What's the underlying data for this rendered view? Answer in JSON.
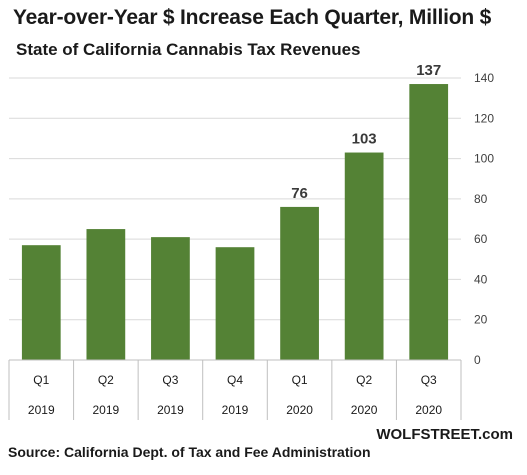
{
  "chart_data": {
    "type": "bar",
    "title": "Year-over-Year  $ Increase Each Quarter,  Million $",
    "subtitle": "State of California Cannabis Tax Revenues",
    "categories": [
      {
        "quarter": "Q1",
        "year": "2019"
      },
      {
        "quarter": "Q2",
        "year": "2019"
      },
      {
        "quarter": "Q3",
        "year": "2019"
      },
      {
        "quarter": "Q4",
        "year": "2019"
      },
      {
        "quarter": "Q1",
        "year": "2020"
      },
      {
        "quarter": "Q2",
        "year": "2020"
      },
      {
        "quarter": "Q3",
        "year": "2020"
      }
    ],
    "values": [
      57,
      65,
      61,
      56,
      76,
      103,
      137
    ],
    "data_labels": [
      "",
      "",
      "",
      "",
      "76",
      "103",
      "137"
    ],
    "ylim": [
      0,
      140
    ],
    "yticks": [
      0,
      20,
      40,
      60,
      80,
      100,
      120,
      140
    ],
    "y_axis_side": "right",
    "grid": true,
    "bar_color": "#548235",
    "xlabel": "",
    "ylabel": ""
  },
  "source": "Source: California Dept. of Tax and Fee Administration",
  "brand": "WOLFSTREET.com"
}
